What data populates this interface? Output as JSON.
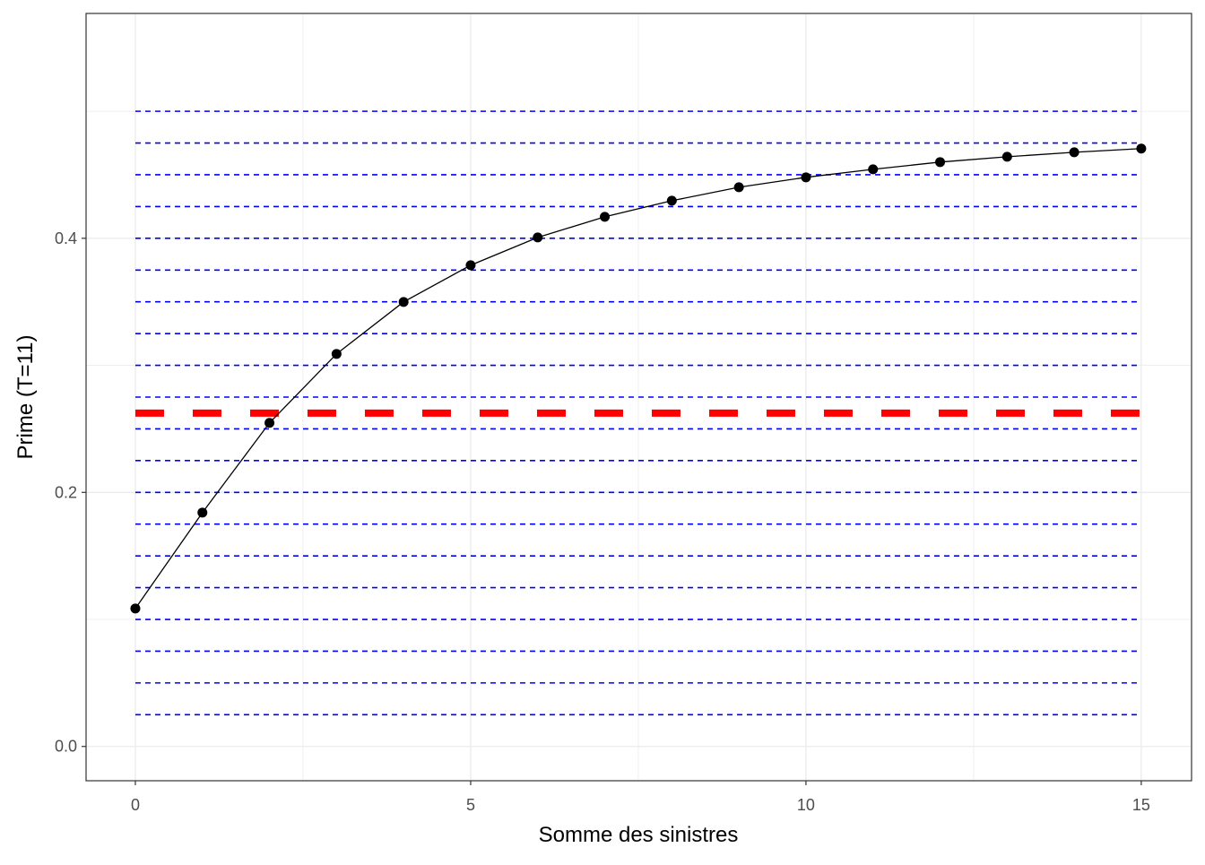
{
  "chart_data": {
    "type": "line",
    "x_label": "Somme des sinistres",
    "y_label": "Prime (T=11)",
    "x": [
      0,
      1,
      2,
      3,
      4,
      5,
      6,
      7,
      8,
      9,
      10,
      11,
      12,
      13,
      14,
      15
    ],
    "series": [
      {
        "color": "#000000",
        "values": [
          0.1086,
          0.1841,
          0.2547,
          0.309,
          0.3499,
          0.3788,
          0.4007,
          0.4169,
          0.4296,
          0.4402,
          0.448,
          0.4543,
          0.46,
          0.4642,
          0.4677,
          0.4706
        ]
      }
    ],
    "xlim": [
      -0.735,
      15.75
    ],
    "ylim": [
      -0.027,
      0.577
    ],
    "xticks": [
      0,
      5,
      10,
      15
    ],
    "yticks": [
      {
        "value": 0,
        "label": "0.0"
      },
      0.2,
      0.4
    ],
    "xminor": [
      2.5,
      7.5,
      12.5
    ],
    "yminor": [
      0.1,
      0.3,
      0.5
    ],
    "grid": true,
    "hlines": {
      "color": "#0000ff",
      "values": [
        0.025,
        0.05,
        0.075,
        0.1,
        0.125,
        0.15,
        0.175,
        0.2,
        0.225,
        0.25,
        0.275,
        0.3,
        0.325,
        0.35,
        0.375,
        0.4,
        0.425,
        0.45,
        0.475,
        0.5
      ]
    },
    "reference_line": {
      "color": "#ff0000",
      "value": 0.2624
    }
  }
}
